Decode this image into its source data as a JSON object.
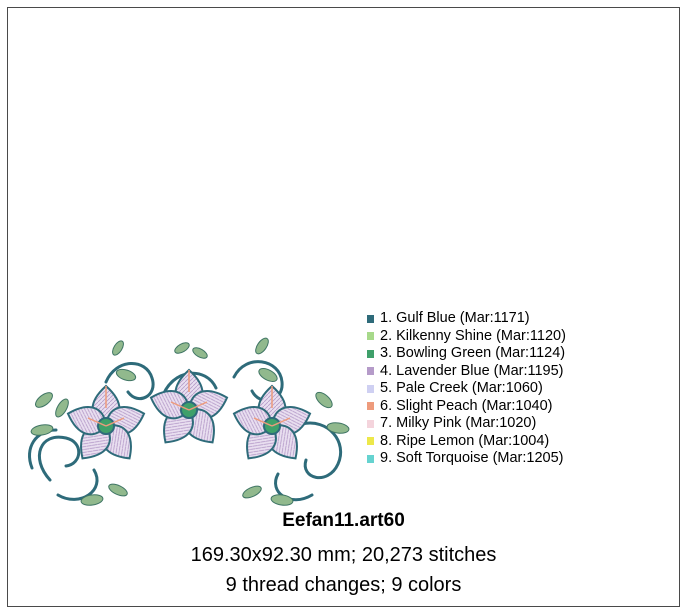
{
  "legend": [
    {
      "num": "1.",
      "name": "Gulf Blue (Mar:1171)",
      "color": "#2e6b7a"
    },
    {
      "num": "2.",
      "name": "Kilkenny Shine (Mar:1120)",
      "color": "#a7d98a"
    },
    {
      "num": "3.",
      "name": "Bowling Green (Mar:1124)",
      "color": "#3fa06a"
    },
    {
      "num": "4.",
      "name": "Lavender Blue (Mar:1195)",
      "color": "#b59bc9"
    },
    {
      "num": "5.",
      "name": "Pale Creek (Mar:1060)",
      "color": "#cfd0f2"
    },
    {
      "num": "6.",
      "name": "Slight Peach (Mar:1040)",
      "color": "#ee9b7c"
    },
    {
      "num": "7.",
      "name": "Milky Pink (Mar:1020)",
      "color": "#f4d4dc"
    },
    {
      "num": "8.",
      "name": "Ripe Lemon (Mar:1004)",
      "color": "#ede84a"
    },
    {
      "num": "9.",
      "name": "Soft Torquoise (Mar:1205)",
      "color": "#66d3d0"
    }
  ],
  "footer": {
    "filename": "Eefan11.art60",
    "dimensions": "169.30x92.30 mm; 20,273 stitches",
    "summary": "9 thread changes; 9 colors"
  }
}
